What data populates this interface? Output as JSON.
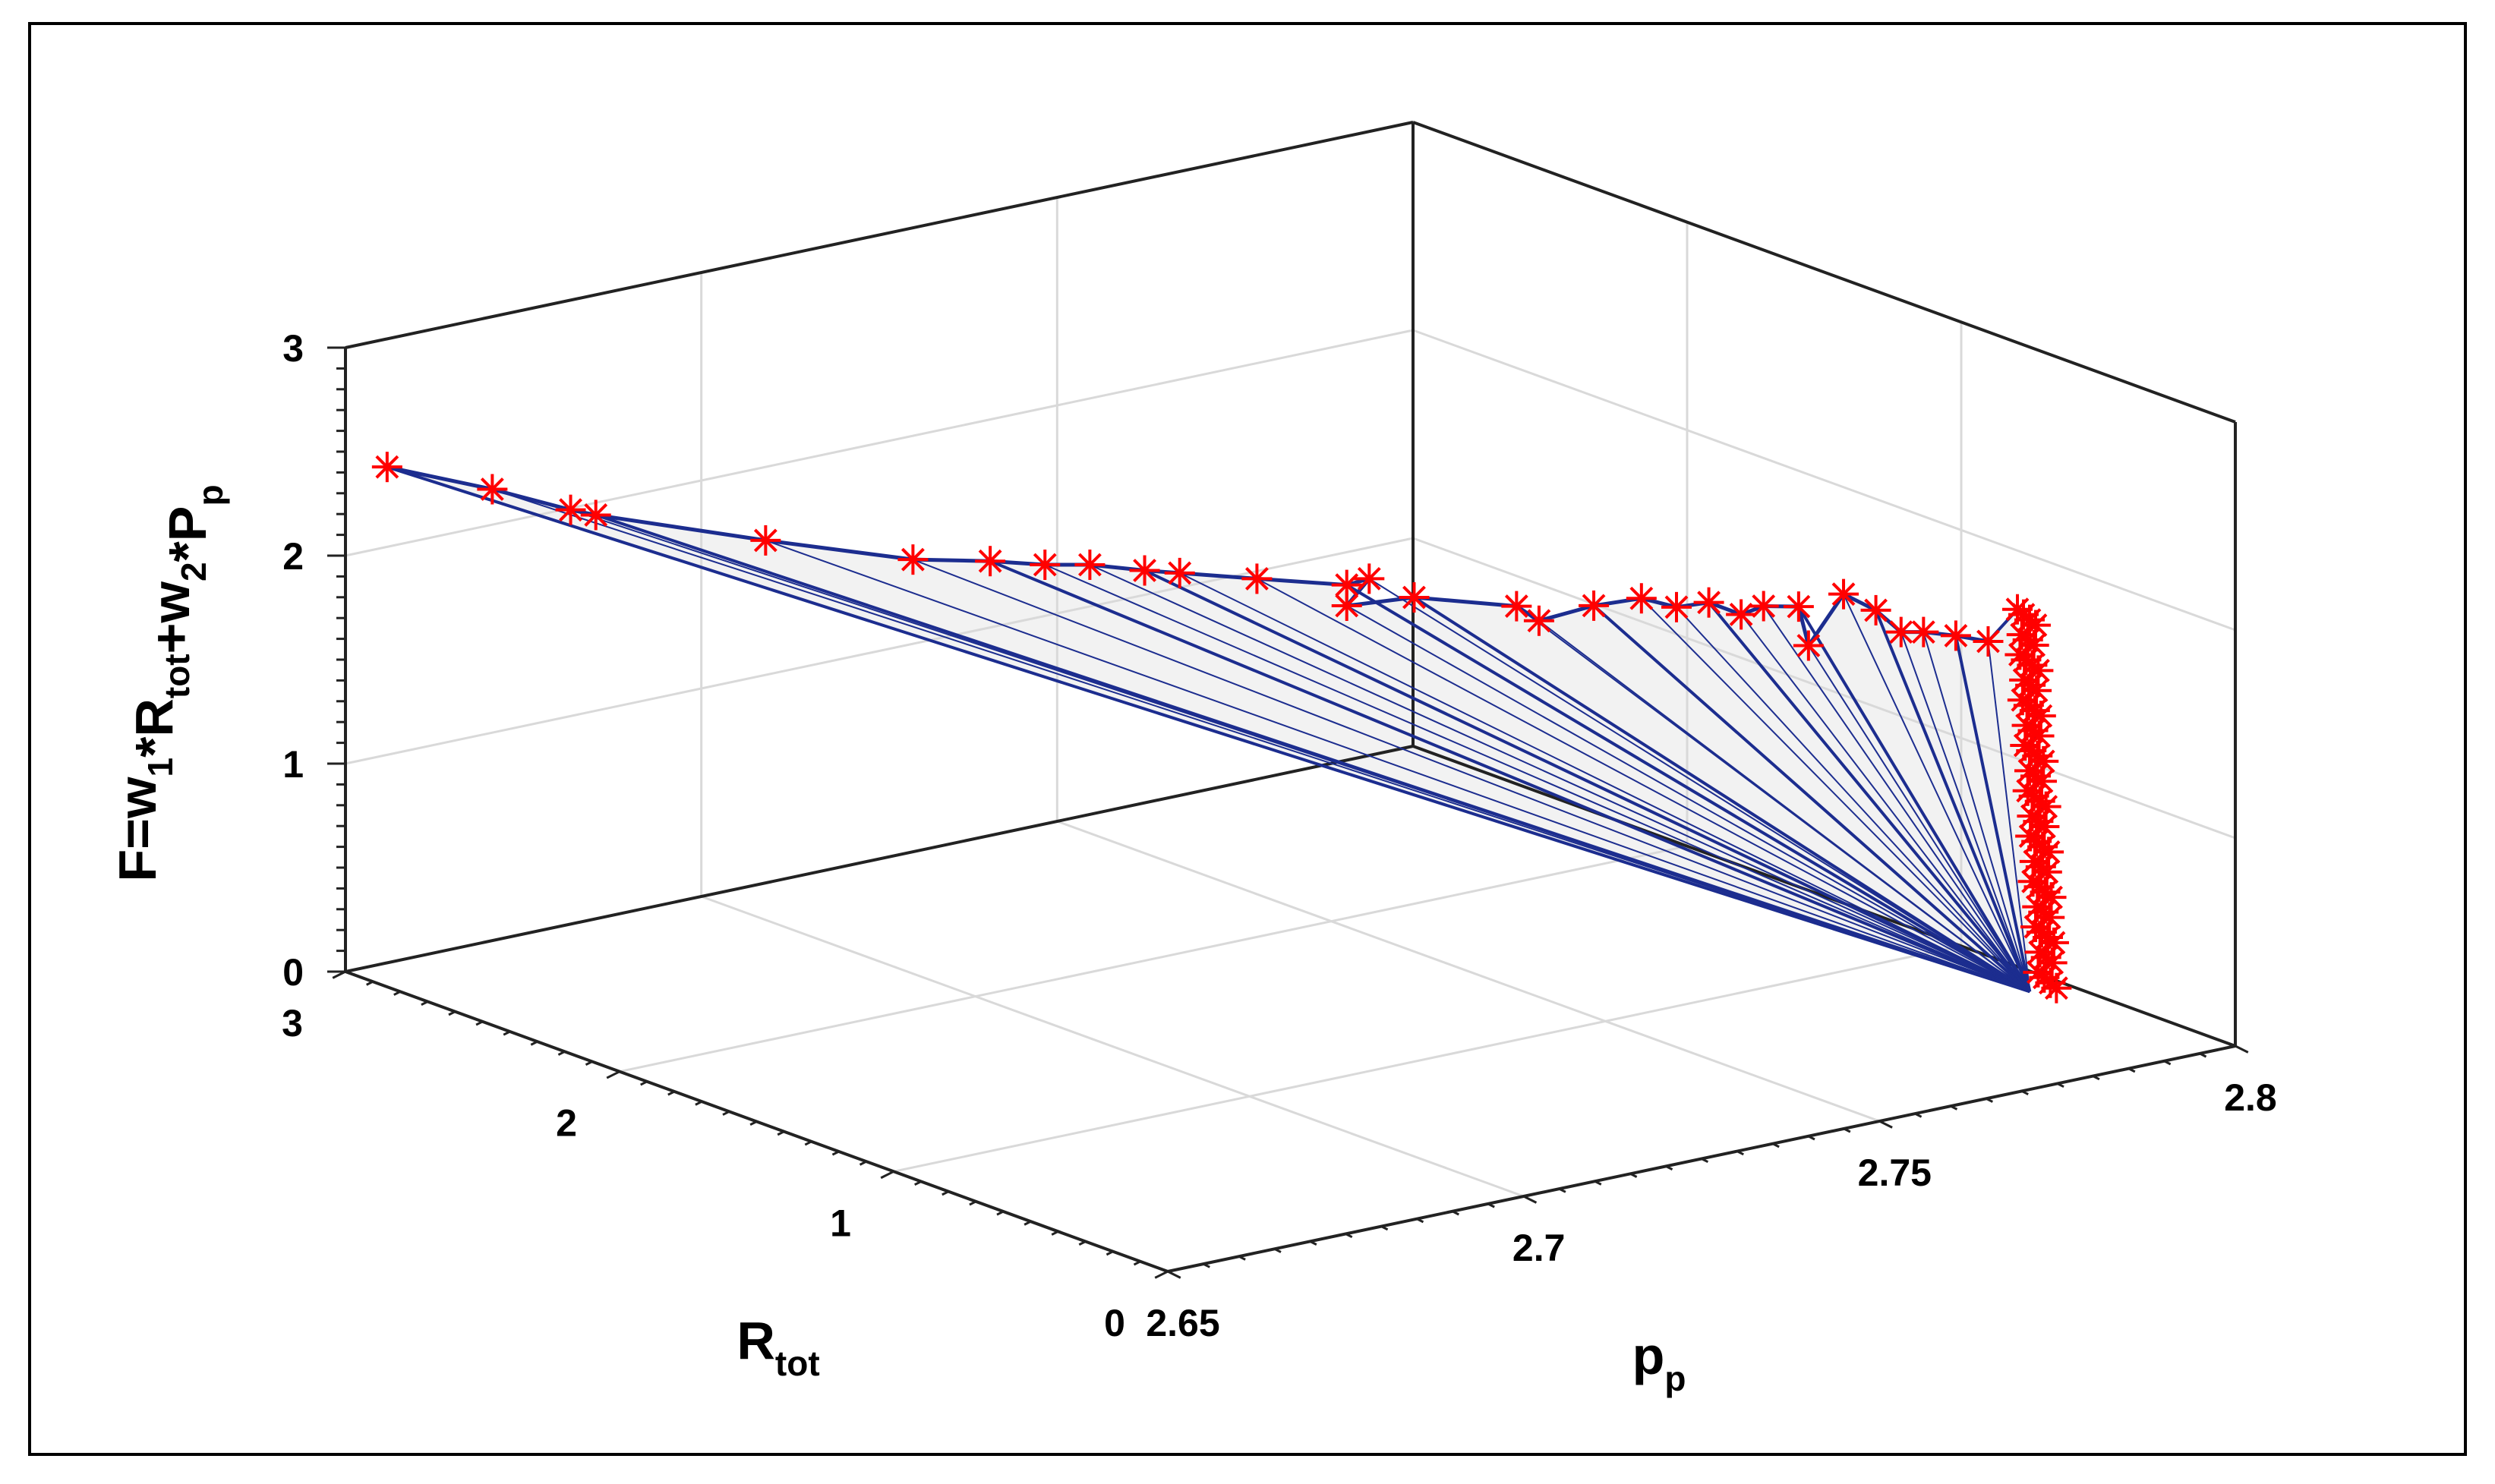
{
  "chart_data": {
    "type": "3d-line-scatter",
    "title": "",
    "xlabel": {
      "main": "p",
      "sub": "p"
    },
    "ylabel": {
      "main": "R",
      "sub": "tot"
    },
    "zlabel": {
      "parts": [
        {
          "t": "F=w",
          "s": "1"
        },
        {
          "t": "*R",
          "s": "tot"
        },
        {
          "t": "+w",
          "s": "2"
        },
        {
          "t": "*P",
          "s": "p"
        }
      ]
    },
    "xlim": [
      2.65,
      2.8
    ],
    "ylim": [
      0,
      3
    ],
    "zlim": [
      0,
      3
    ],
    "xticks": [
      "2.65",
      "2.7",
      "2.75",
      "2.8"
    ],
    "yticks": [
      "0",
      "1",
      "2",
      "3"
    ],
    "zticks": [
      "0",
      "1",
      "2",
      "3"
    ],
    "grid": true,
    "marker": "*",
    "marker_color": "#ff0000",
    "line_color": "#1c2d8f",
    "fill_color": "#f2f2f2",
    "ridge": [
      {
        "x": 2.652,
        "y": 2.9,
        "z": 2.46
      },
      {
        "x": 2.661,
        "y": 2.75,
        "z": 2.36
      },
      {
        "x": 2.667,
        "y": 2.62,
        "z": 2.28
      },
      {
        "x": 2.669,
        "y": 2.58,
        "z": 2.26
      },
      {
        "x": 2.684,
        "y": 2.35,
        "z": 2.14
      },
      {
        "x": 2.697,
        "y": 2.15,
        "z": 2.05
      },
      {
        "x": 2.704,
        "y": 2.05,
        "z": 2.04
      },
      {
        "x": 2.709,
        "y": 1.98,
        "z": 2.02
      },
      {
        "x": 2.713,
        "y": 1.92,
        "z": 2.02
      },
      {
        "x": 2.718,
        "y": 1.85,
        "z": 1.99
      },
      {
        "x": 2.721,
        "y": 1.8,
        "z": 1.98
      },
      {
        "x": 2.728,
        "y": 1.7,
        "z": 1.95
      },
      {
        "x": 2.736,
        "y": 1.58,
        "z": 1.92
      },
      {
        "x": 2.738,
        "y": 1.55,
        "z": 1.95
      },
      {
        "x": 2.736,
        "y": 1.58,
        "z": 1.82
      },
      {
        "x": 2.742,
        "y": 1.49,
        "z": 1.86
      },
      {
        "x": 2.751,
        "y": 1.35,
        "z": 1.82
      },
      {
        "x": 2.753,
        "y": 1.32,
        "z": 1.75
      },
      {
        "x": 2.758,
        "y": 1.25,
        "z": 1.82
      },
      {
        "x": 2.762,
        "y": 1.18,
        "z": 1.86
      },
      {
        "x": 2.765,
        "y": 1.13,
        "z": 1.82
      },
      {
        "x": 2.768,
        "y": 1.09,
        "z": 1.84
      },
      {
        "x": 2.771,
        "y": 1.05,
        "z": 1.78
      },
      {
        "x": 2.773,
        "y": 1.02,
        "z": 1.82
      },
      {
        "x": 2.776,
        "y": 0.97,
        "z": 1.82
      },
      {
        "x": 2.777,
        "y": 0.96,
        "z": 1.63
      },
      {
        "x": 2.78,
        "y": 0.91,
        "z": 1.88
      },
      {
        "x": 2.783,
        "y": 0.87,
        "z": 1.8
      },
      {
        "x": 2.785,
        "y": 0.83,
        "z": 1.7
      },
      {
        "x": 2.787,
        "y": 0.8,
        "z": 1.7
      },
      {
        "x": 2.79,
        "y": 0.76,
        "z": 1.68
      },
      {
        "x": 2.793,
        "y": 0.72,
        "z": 1.65
      }
    ],
    "vertical_band": {
      "x": 2.796,
      "y_from": 0.66,
      "y_to": 0.58,
      "z_from": 1.82,
      "z_to": 0.02,
      "points": 60
    },
    "convergence": {
      "x": 2.795,
      "y": 0.62,
      "z": 0.0
    }
  }
}
